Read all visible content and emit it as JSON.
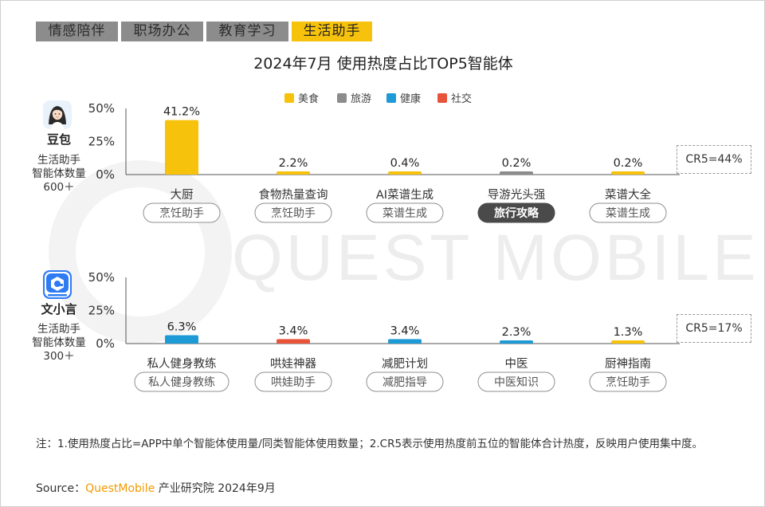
{
  "tabs": [
    {
      "label": "情感陪伴",
      "active": false
    },
    {
      "label": "职场办公",
      "active": false
    },
    {
      "label": "教育学习",
      "active": false
    },
    {
      "label": "生活助手",
      "active": true
    }
  ],
  "title": "2024年7月 使用热度占比TOP5智能体",
  "legend": [
    {
      "label": "美食",
      "color": "#f6c20b"
    },
    {
      "label": "旅游",
      "color": "#8c8c8c"
    },
    {
      "label": "健康",
      "color": "#1e9ad6"
    },
    {
      "label": "社交",
      "color": "#e8533a"
    }
  ],
  "watermark": "QUEST MOBILE",
  "apps": [
    {
      "name": "豆包",
      "meta": [
        "生活助手",
        "智能体数量",
        "600＋"
      ],
      "cr5": "CR5=44%"
    },
    {
      "name": "文小言",
      "meta": [
        "生活助手",
        "智能体数量",
        "300＋"
      ],
      "cr5": "CR5=17%"
    }
  ],
  "chart_data": [
    {
      "type": "bar",
      "app": "豆包",
      "categories": [
        "大厨",
        "食物热量查询",
        "AI菜谱生成",
        "导游光头强",
        "菜谱大全"
      ],
      "values": [
        41.2,
        2.2,
        0.4,
        0.2,
        0.2
      ],
      "value_labels": [
        "41.2%",
        "2.2%",
        "0.4%",
        "0.2%",
        "0.2%"
      ],
      "category_type": [
        "美食",
        "美食",
        "美食",
        "旅游",
        "美食"
      ],
      "tags": [
        "烹饪助手",
        "烹饪助手",
        "菜谱生成",
        "旅行攻略",
        "菜谱生成"
      ],
      "highlight_tag_index": 3,
      "yticks": [
        "50%",
        "25%",
        "0%"
      ],
      "ylim": [
        0,
        50
      ]
    },
    {
      "type": "bar",
      "app": "文小言",
      "categories": [
        "私人健身教练",
        "哄娃神器",
        "减肥计划",
        "中医",
        "厨神指南"
      ],
      "values": [
        6.3,
        3.4,
        3.4,
        2.3,
        1.3
      ],
      "value_labels": [
        "6.3%",
        "3.4%",
        "3.4%",
        "2.3%",
        "1.3%"
      ],
      "category_type": [
        "健康",
        "社交",
        "健康",
        "健康",
        "美食"
      ],
      "tags": [
        "私人健身教练",
        "哄娃助手",
        "减肥指导",
        "中医知识",
        "烹饪助手"
      ],
      "highlight_tag_index": -1,
      "yticks": [
        "50%",
        "25%",
        "0%"
      ],
      "ylim": [
        0,
        50
      ]
    }
  ],
  "note": "注：1.使用热度占比=APP中单个智能体使用量/同类智能体使用数量；2.CR5表示使用热度前五位的智能体合计热度，反映用户使用集中度。",
  "source": {
    "prefix": "Source：",
    "brand": "QuestMobile",
    "suffix": " 产业研究院 2024年9月"
  }
}
